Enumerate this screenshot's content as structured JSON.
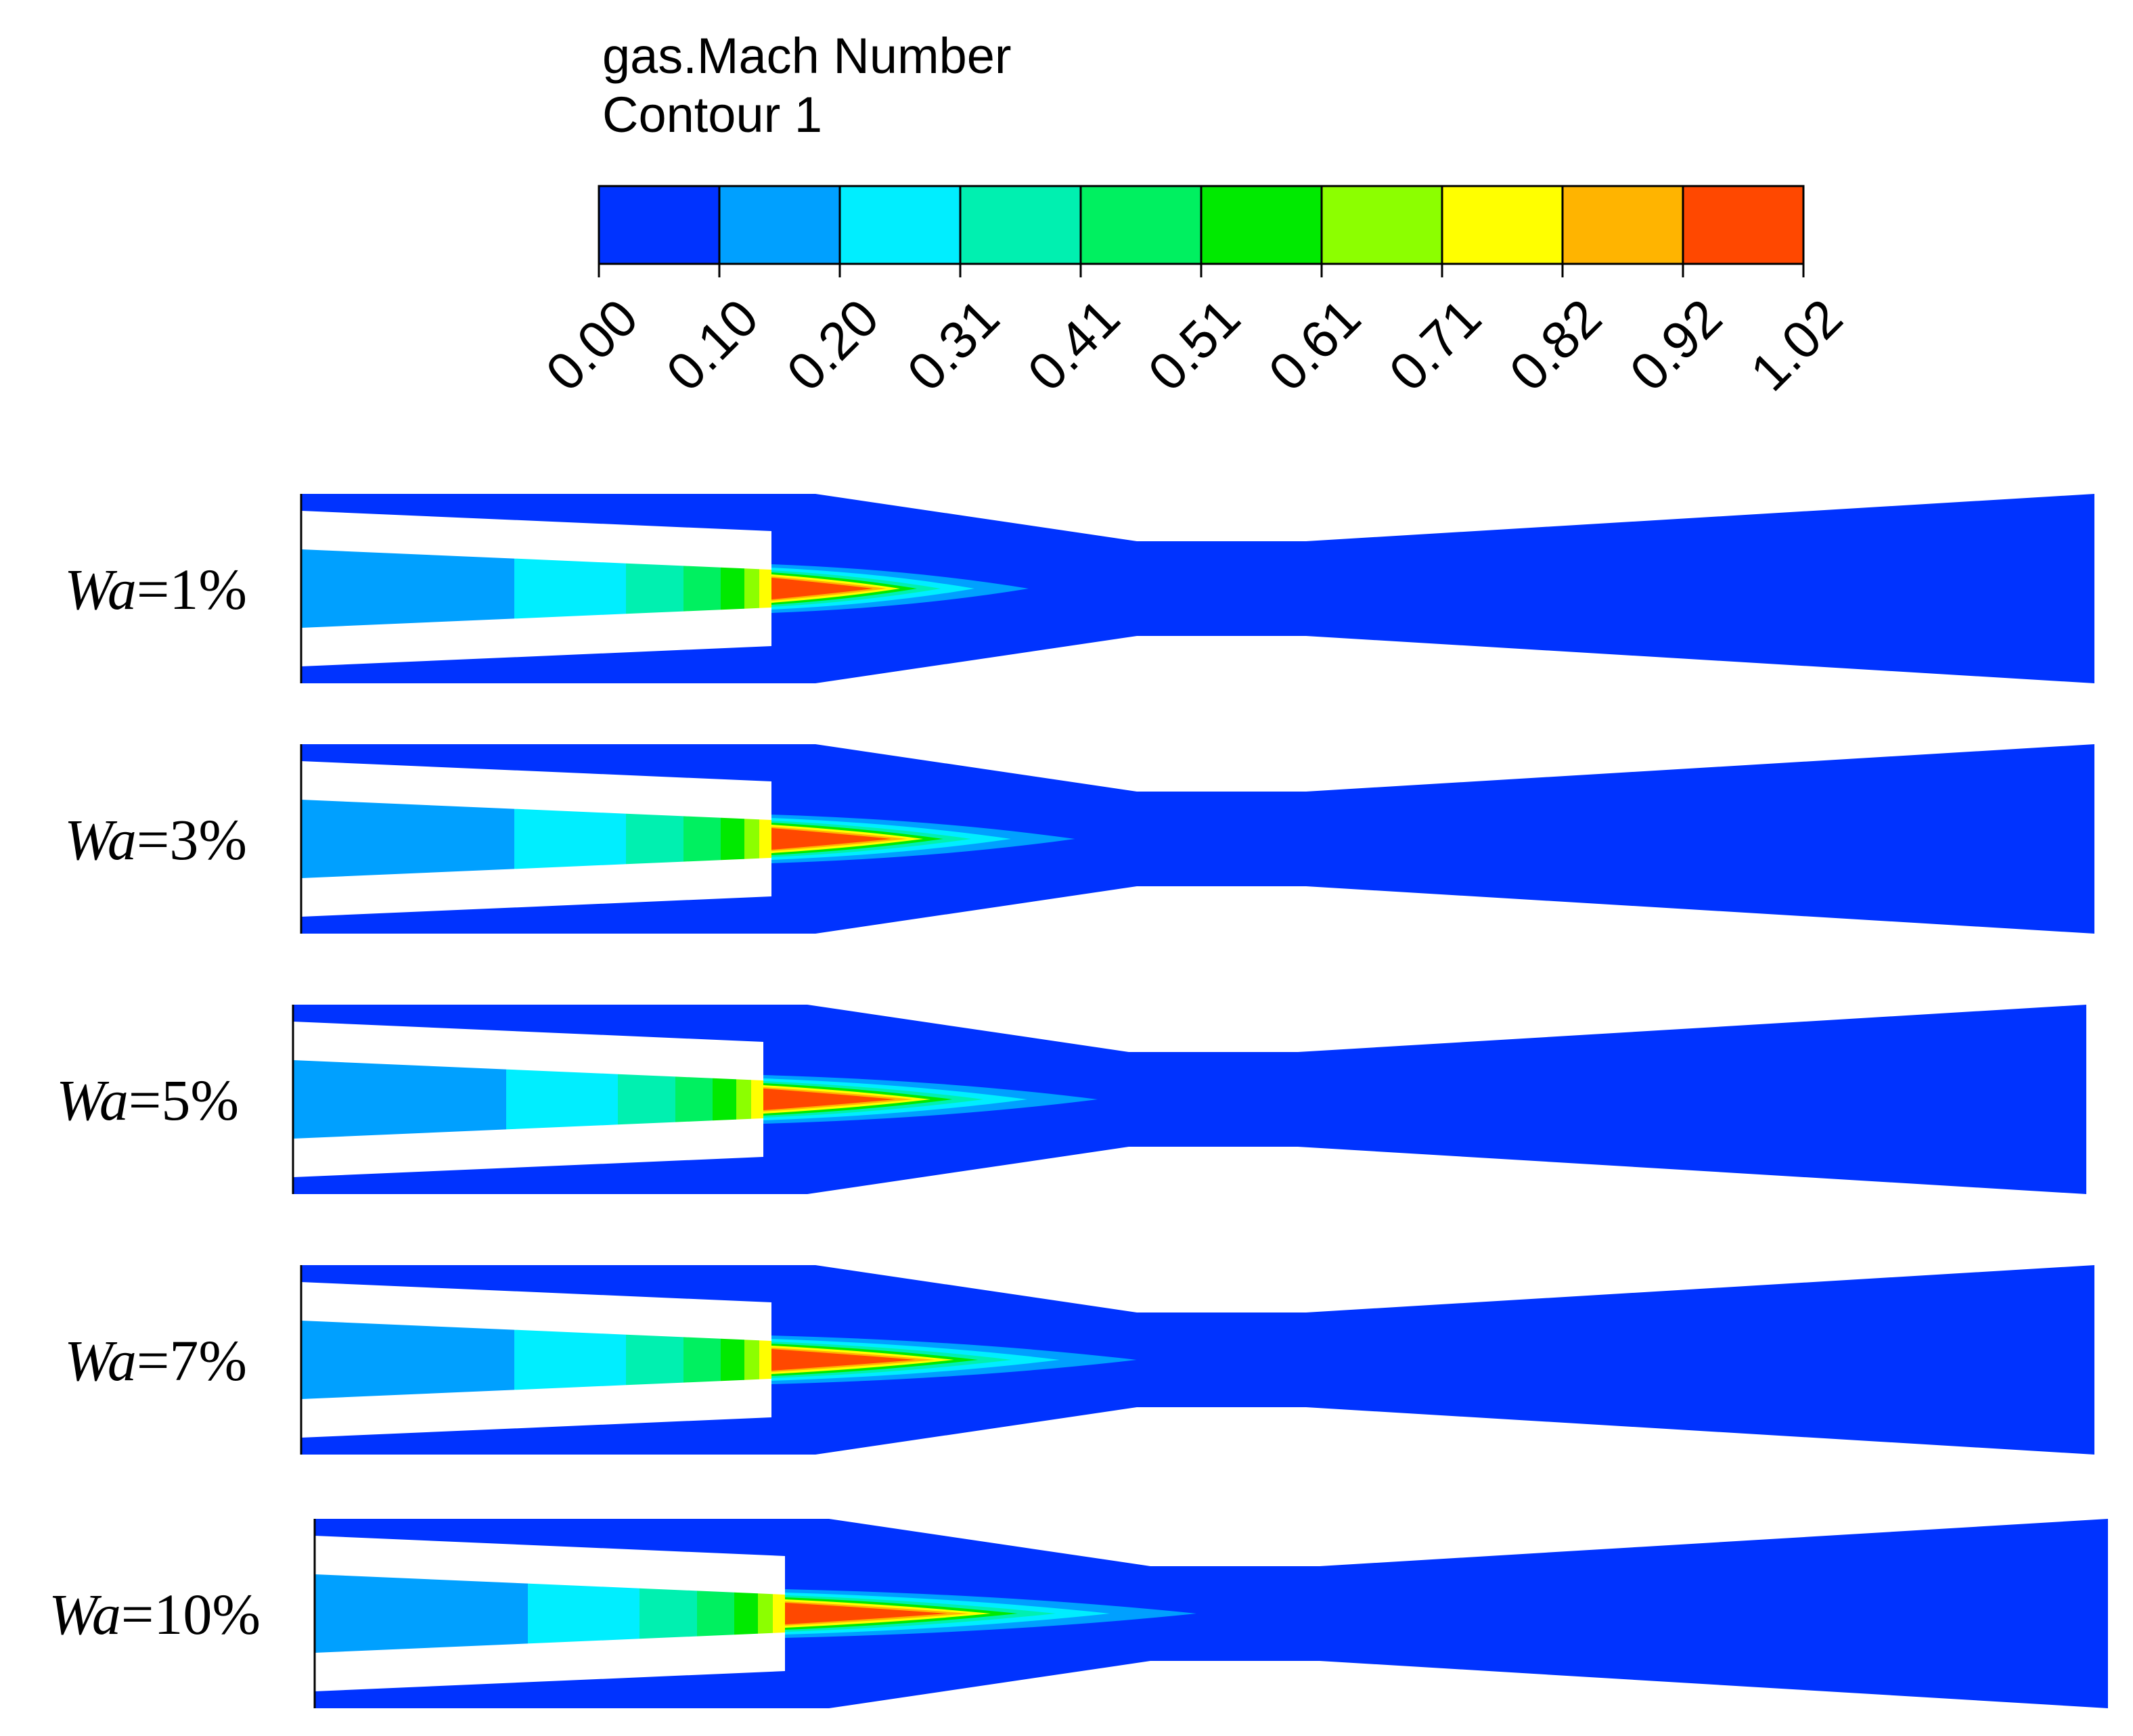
{
  "legend": {
    "title_line1": "gas.Mach Number",
    "title_line2": "Contour 1",
    "levels": [
      "0.00",
      "0.10",
      "0.20",
      "0.31",
      "0.41",
      "0.51",
      "0.61",
      "0.71",
      "0.82",
      "0.92",
      "1.02"
    ],
    "colors": [
      "#0033ff",
      "#00a0ff",
      "#00eeff",
      "#00f0b0",
      "#00f060",
      "#00ea00",
      "#8cff00",
      "#ffff00",
      "#ffb400",
      "#ff4800"
    ]
  },
  "cases": [
    {
      "label_var": "Wa",
      "label_value": "=1%",
      "plume_scale": 1.0
    },
    {
      "label_var": "Wa",
      "label_value": "=3%",
      "plume_scale": 1.18
    },
    {
      "label_var": "Wa",
      "label_value": "=5%",
      "plume_scale": 1.3
    },
    {
      "label_var": "Wa",
      "label_value": "=7%",
      "plume_scale": 1.42
    },
    {
      "label_var": "Wa",
      "label_value": "=10%",
      "plume_scale": 1.6
    }
  ]
}
